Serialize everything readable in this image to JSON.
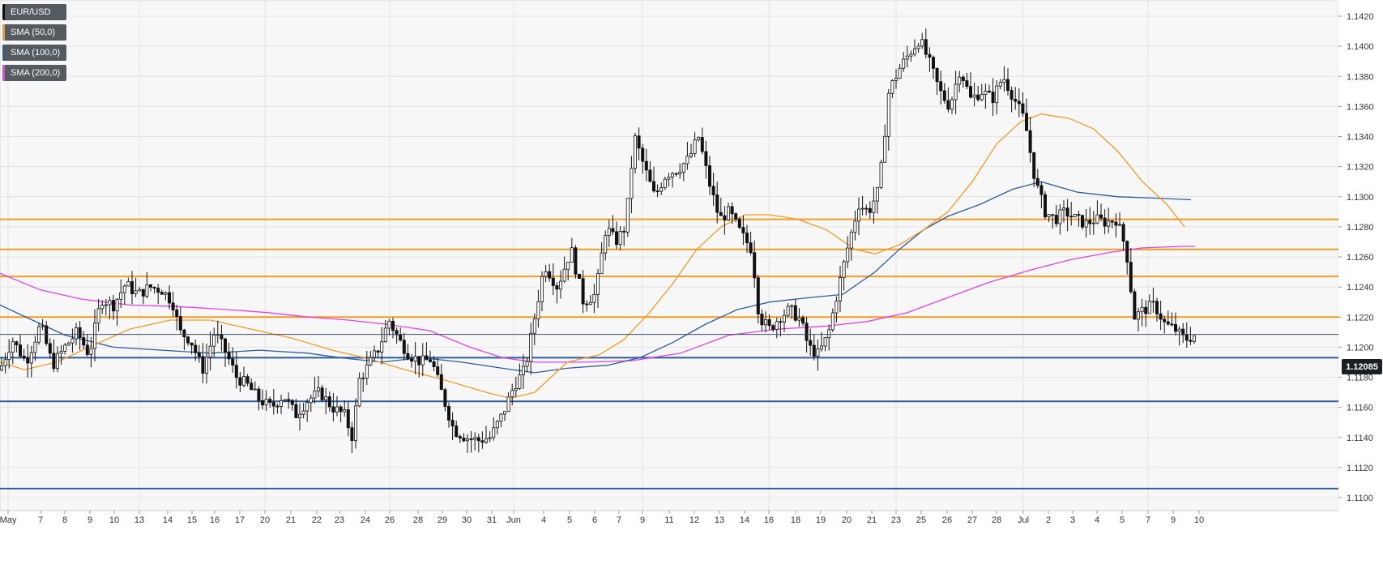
{
  "legend": [
    {
      "label": "EUR/USD",
      "color": "#111111"
    },
    {
      "label": "SMA (50,0)",
      "color": "#f39c24"
    },
    {
      "label": "SMA (100,0)",
      "color": "#2e5d9e"
    },
    {
      "label": "SMA (200,0)",
      "color": "#e542e5"
    }
  ],
  "current_price": "1.12085",
  "chart_data": {
    "type": "candlestick",
    "symbol": "EUR/USD",
    "ylim": [
      1.109,
      1.1432
    ],
    "y_ticks": [
      "1.1100",
      "1.1120",
      "1.1140",
      "1.1160",
      "1.1180",
      "1.1200",
      "1.1220",
      "1.1240",
      "1.1260",
      "1.1280",
      "1.1300",
      "1.1320",
      "1.1340",
      "1.1360",
      "1.1380",
      "1.1400",
      "1.1420"
    ],
    "x_ticks": [
      "May",
      "7",
      "8",
      "9",
      "10",
      "13",
      "14",
      "15",
      "16",
      "17",
      "20",
      "21",
      "22",
      "23",
      "24",
      "26",
      "28",
      "29",
      "30",
      "31",
      "Jun",
      "4",
      "5",
      "6",
      "7",
      "9",
      "11",
      "12",
      "13",
      "14",
      "16",
      "18",
      "19",
      "20",
      "21",
      "23",
      "25",
      "26",
      "27",
      "28",
      "Jul",
      "2",
      "3",
      "4",
      "5",
      "7",
      "9",
      "10"
    ],
    "grid": true,
    "horizontal_levels": [
      {
        "value": 1.1285,
        "color": "#f39c24"
      },
      {
        "value": 1.1265,
        "color": "#f39c24"
      },
      {
        "value": 1.1247,
        "color": "#f39c24"
      },
      {
        "value": 1.122,
        "color": "#f39c24"
      },
      {
        "value": 1.1193,
        "color": "#2e5d9e"
      },
      {
        "value": 1.1164,
        "color": "#2e5d9e"
      },
      {
        "value": 1.1106,
        "color": "#2e5d9e"
      }
    ],
    "last_price": 1.12085,
    "price_path": [
      [
        0,
        1.1185
      ],
      [
        15,
        1.1205
      ],
      [
        32,
        1.119
      ],
      [
        50,
        1.1215
      ],
      [
        65,
        1.1188
      ],
      [
        80,
        1.12
      ],
      [
        95,
        1.121
      ],
      [
        110,
        1.1195
      ],
      [
        125,
        1.1232
      ],
      [
        140,
        1.1228
      ],
      [
        155,
        1.1242
      ],
      [
        170,
        1.1235
      ],
      [
        185,
        1.124
      ],
      [
        200,
        1.1238
      ],
      [
        213,
        1.123
      ],
      [
        222,
        1.121
      ],
      [
        235,
        1.1205
      ],
      [
        250,
        1.1185
      ],
      [
        265,
        1.121
      ],
      [
        280,
        1.1195
      ],
      [
        292,
        1.118
      ],
      [
        305,
        1.1175
      ],
      [
        320,
        1.1165
      ],
      [
        335,
        1.116
      ],
      [
        350,
        1.1168
      ],
      [
        365,
        1.1155
      ],
      [
        380,
        1.1165
      ],
      [
        395,
        1.117
      ],
      [
        410,
        1.116
      ],
      [
        425,
        1.1155
      ],
      [
        435,
        1.114
      ],
      [
        443,
        1.1178
      ],
      [
        455,
        1.1188
      ],
      [
        468,
        1.12
      ],
      [
        480,
        1.1218
      ],
      [
        492,
        1.1205
      ],
      [
        505,
        1.1195
      ],
      [
        520,
        1.119
      ],
      [
        532,
        1.1192
      ],
      [
        545,
        1.117
      ],
      [
        560,
        1.1145
      ],
      [
        575,
        1.114
      ],
      [
        590,
        1.1138
      ],
      [
        605,
        1.114
      ],
      [
        620,
        1.1155
      ],
      [
        635,
        1.1175
      ],
      [
        648,
        1.1185
      ],
      [
        660,
        1.122
      ],
      [
        672,
        1.1255
      ],
      [
        688,
        1.124
      ],
      [
        705,
        1.1265
      ],
      [
        720,
        1.123
      ],
      [
        735,
        1.1235
      ],
      [
        748,
        1.128
      ],
      [
        760,
        1.127
      ],
      [
        772,
        1.128
      ],
      [
        783,
        1.134
      ],
      [
        795,
        1.132
      ],
      [
        808,
        1.13
      ],
      [
        822,
        1.1315
      ],
      [
        836,
        1.1318
      ],
      [
        850,
        1.1325
      ],
      [
        862,
        1.134
      ],
      [
        875,
        1.131
      ],
      [
        888,
        1.1285
      ],
      [
        900,
        1.129
      ],
      [
        915,
        1.1275
      ],
      [
        928,
        1.1265
      ],
      [
        937,
        1.122
      ],
      [
        950,
        1.1212
      ],
      [
        962,
        1.122
      ],
      [
        975,
        1.1225
      ],
      [
        988,
        1.1218
      ],
      [
        998,
        1.12
      ],
      [
        1010,
        1.1195
      ],
      [
        1022,
        1.1208
      ],
      [
        1035,
        1.124
      ],
      [
        1048,
        1.127
      ],
      [
        1060,
        1.1295
      ],
      [
        1072,
        1.129
      ],
      [
        1085,
        1.1305
      ],
      [
        1097,
        1.137
      ],
      [
        1110,
        1.1385
      ],
      [
        1122,
        1.1395
      ],
      [
        1135,
        1.1405
      ],
      [
        1148,
        1.1388
      ],
      [
        1160,
        1.137
      ],
      [
        1172,
        1.136
      ],
      [
        1185,
        1.1385
      ],
      [
        1198,
        1.1365
      ],
      [
        1212,
        1.137
      ],
      [
        1225,
        1.1365
      ],
      [
        1238,
        1.138
      ],
      [
        1252,
        1.1365
      ],
      [
        1265,
        1.135
      ],
      [
        1278,
        1.131
      ],
      [
        1290,
        1.129
      ],
      [
        1302,
        1.1285
      ],
      [
        1315,
        1.129
      ],
      [
        1328,
        1.1285
      ],
      [
        1340,
        1.1282
      ],
      [
        1352,
        1.1285
      ],
      [
        1365,
        1.1283
      ],
      [
        1378,
        1.1285
      ],
      [
        1390,
        1.1265
      ],
      [
        1400,
        1.122
      ],
      [
        1412,
        1.1225
      ],
      [
        1425,
        1.1228
      ],
      [
        1438,
        1.1215
      ],
      [
        1450,
        1.1212
      ],
      [
        1462,
        1.1205
      ],
      [
        1475,
        1.1208
      ]
    ],
    "sma_50": [
      [
        0,
        1.119
      ],
      [
        30,
        1.1185
      ],
      [
        70,
        1.119
      ],
      [
        110,
        1.12
      ],
      [
        160,
        1.1212
      ],
      [
        210,
        1.1218
      ],
      [
        260,
        1.1218
      ],
      [
        310,
        1.1212
      ],
      [
        360,
        1.1206
      ],
      [
        410,
        1.1198
      ],
      [
        450,
        1.1193
      ],
      [
        500,
        1.1185
      ],
      [
        550,
        1.1178
      ],
      [
        600,
        1.117
      ],
      [
        630,
        1.1166
      ],
      [
        660,
        1.117
      ],
      [
        700,
        1.119
      ],
      [
        740,
        1.1195
      ],
      [
        770,
        1.1205
      ],
      [
        800,
        1.1222
      ],
      [
        830,
        1.1242
      ],
      [
        860,
        1.1265
      ],
      [
        890,
        1.128
      ],
      [
        920,
        1.1288
      ],
      [
        950,
        1.1288
      ],
      [
        985,
        1.1285
      ],
      [
        1020,
        1.1278
      ],
      [
        1055,
        1.1265
      ],
      [
        1080,
        1.1262
      ],
      [
        1110,
        1.1268
      ],
      [
        1140,
        1.1278
      ],
      [
        1170,
        1.129
      ],
      [
        1200,
        1.131
      ],
      [
        1230,
        1.1335
      ],
      [
        1260,
        1.135
      ],
      [
        1285,
        1.1355
      ],
      [
        1320,
        1.1352
      ],
      [
        1350,
        1.1345
      ],
      [
        1380,
        1.133
      ],
      [
        1410,
        1.131
      ],
      [
        1440,
        1.1295
      ],
      [
        1462,
        1.128
      ]
    ],
    "sma_100": [
      [
        0,
        1.1228
      ],
      [
        40,
        1.1218
      ],
      [
        80,
        1.1208
      ],
      [
        140,
        1.12
      ],
      [
        200,
        1.1198
      ],
      [
        260,
        1.1196
      ],
      [
        320,
        1.1198
      ],
      [
        380,
        1.1196
      ],
      [
        420,
        1.1193
      ],
      [
        470,
        1.119
      ],
      [
        520,
        1.1193
      ],
      [
        570,
        1.119
      ],
      [
        620,
        1.1186
      ],
      [
        660,
        1.1183
      ],
      [
        700,
        1.1186
      ],
      [
        750,
        1.1188
      ],
      [
        790,
        1.1193
      ],
      [
        830,
        1.1203
      ],
      [
        870,
        1.1215
      ],
      [
        910,
        1.1225
      ],
      [
        950,
        1.123
      ],
      [
        1000,
        1.1233
      ],
      [
        1040,
        1.1235
      ],
      [
        1080,
        1.125
      ],
      [
        1110,
        1.1265
      ],
      [
        1140,
        1.1278
      ],
      [
        1170,
        1.1287
      ],
      [
        1210,
        1.1295
      ],
      [
        1250,
        1.1305
      ],
      [
        1285,
        1.131
      ],
      [
        1330,
        1.1303
      ],
      [
        1380,
        1.13
      ],
      [
        1430,
        1.1299
      ],
      [
        1470,
        1.1298
      ]
    ],
    "sma_200": [
      [
        0,
        1.1249
      ],
      [
        50,
        1.1238
      ],
      [
        100,
        1.1232
      ],
      [
        160,
        1.1228
      ],
      [
        220,
        1.1227
      ],
      [
        280,
        1.1225
      ],
      [
        330,
        1.1223
      ],
      [
        380,
        1.122
      ],
      [
        430,
        1.1218
      ],
      [
        480,
        1.1215
      ],
      [
        530,
        1.1211
      ],
      [
        580,
        1.12
      ],
      [
        620,
        1.1193
      ],
      [
        660,
        1.119
      ],
      [
        720,
        1.119
      ],
      [
        780,
        1.1191
      ],
      [
        840,
        1.1196
      ],
      [
        900,
        1.1208
      ],
      [
        960,
        1.1212
      ],
      [
        1020,
        1.1214
      ],
      [
        1070,
        1.1217
      ],
      [
        1120,
        1.1223
      ],
      [
        1170,
        1.1233
      ],
      [
        1220,
        1.1243
      ],
      [
        1270,
        1.1251
      ],
      [
        1320,
        1.1258
      ],
      [
        1370,
        1.1263
      ],
      [
        1410,
        1.1266
      ],
      [
        1460,
        1.1267
      ],
      [
        1475,
        1.1267
      ]
    ]
  }
}
